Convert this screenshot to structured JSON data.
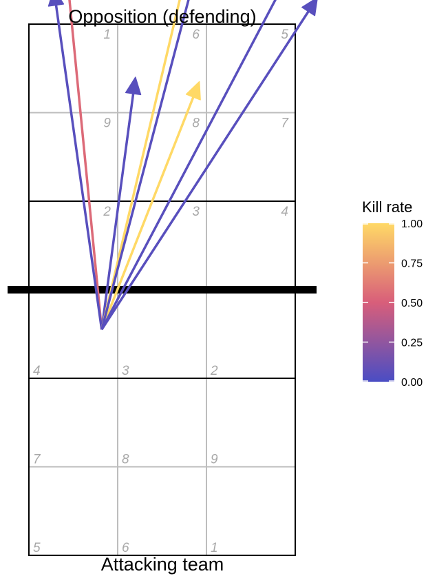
{
  "chart_data": {
    "type": "court_arrows",
    "top_label": "Opposition (defending)",
    "bottom_label": "Attacking team",
    "zones": {
      "defending": [
        [
          "1",
          "6",
          "5"
        ],
        [
          "9",
          "8",
          "7"
        ],
        [
          "2",
          "3",
          "4"
        ]
      ],
      "attacking": [
        [
          "4",
          "3",
          "2"
        ],
        [
          "7",
          "8",
          "9"
        ],
        [
          "5",
          "6",
          "1"
        ]
      ]
    },
    "origin": {
      "x": 0.82,
      "y": 2.55
    },
    "arrows": [
      {
        "to": {
          "x": 0.25,
          "y": 8.4
        },
        "kill_rate": 0.55
      },
      {
        "to": {
          "x": 0.28,
          "y": 6.4
        },
        "kill_rate": 0.05
      },
      {
        "to": {
          "x": 1.2,
          "y": 5.4
        },
        "kill_rate": 0.05
      },
      {
        "to": {
          "x": 1.92,
          "y": 5.35
        },
        "kill_rate": 1.0
      },
      {
        "to": {
          "x": 2.33,
          "y": 8.95
        },
        "kill_rate": 1.0
      },
      {
        "to": {
          "x": 2.33,
          "y": 8.3
        },
        "kill_rate": 0.05
      },
      {
        "to": {
          "x": 3.25,
          "y": 6.3
        },
        "kill_rate": 0.05
      },
      {
        "to": {
          "x": 3.84,
          "y": 8.3
        },
        "kill_rate": 0.05
      }
    ],
    "colorbar": {
      "title": "Kill rate",
      "ticks": [
        "1.00",
        "0.75",
        "0.50",
        "0.25",
        "0.00"
      ],
      "tick_values": [
        1.0,
        0.75,
        0.5,
        0.25,
        0.0
      ],
      "range": [
        0,
        1
      ],
      "low_color": "#4a4dc4",
      "mid_color": "#d85e7a",
      "high_color": "#ffd966"
    }
  }
}
